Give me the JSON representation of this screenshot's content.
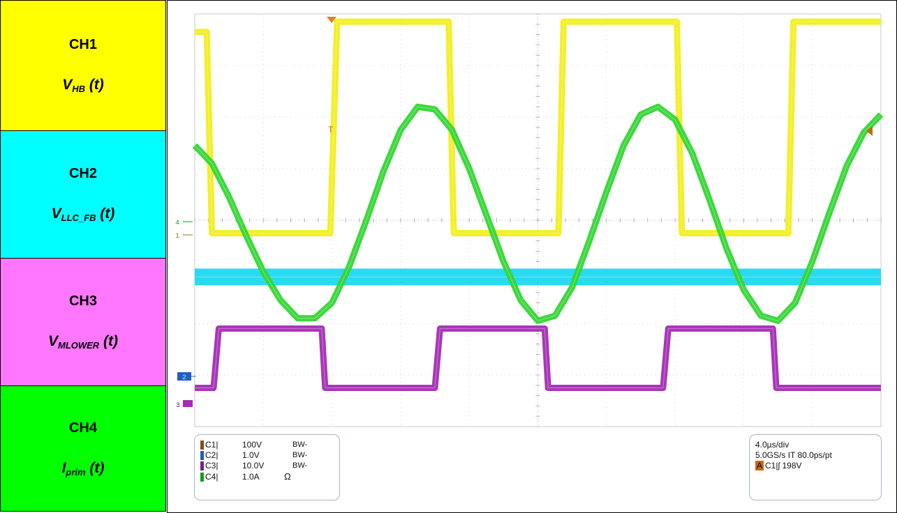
{
  "legend": [
    {
      "name": "CH1",
      "signal": "V",
      "sub": "HB",
      "suffix": " (t)",
      "color": "#ffff00"
    },
    {
      "name": "CH2",
      "signal": "V",
      "sub": "LLC_FB",
      "suffix": " (t)",
      "color": "#00ffff"
    },
    {
      "name": "CH3",
      "signal": "V",
      "sub": "MLOWER",
      "suffix": " (t)",
      "color": "#ff77ff"
    },
    {
      "name": "CH4",
      "signal": "I",
      "sub": "prim",
      "suffix": " (t)",
      "color": "#00ff00"
    }
  ],
  "scope_settings": {
    "channels": [
      {
        "label": "C1",
        "sep": "|",
        "scale": "100V",
        "bw": "BW-",
        "color": "#8b4a1a"
      },
      {
        "label": "C2",
        "sep": "|",
        "scale": "1.0V",
        "bw": "BW-",
        "color": "#1f5fbf"
      },
      {
        "label": "C3",
        "sep": "|",
        "scale": "10.0V",
        "bw": "BW-",
        "color": "#7a1f8e"
      },
      {
        "label": "C4",
        "sep": "|",
        "scale": "1.0A",
        "bw": "Ω",
        "color": "#1a9a1a"
      }
    ],
    "timebase": "4.0µs/div",
    "sample_rate": "5.0GS/s IT 80.0ps/pt",
    "trigger": {
      "badge": "A",
      "source": "C1",
      "slope": "|ʃ",
      "level": "198V"
    }
  },
  "markers": {
    "ch4": "4",
    "ch1": "1",
    "ch2": "2",
    "ch3": "3"
  },
  "chart_data": {
    "type": "line",
    "x_unit": "µs",
    "time_per_div": 4.0,
    "divisions_x": 10,
    "divisions_y": 8,
    "x_range": [
      0,
      40
    ],
    "series": [
      {
        "name": "CH1",
        "color": "#f2ee1c",
        "points": [
          [
            0,
            3.65
          ],
          [
            0.7,
            3.65
          ],
          [
            1.0,
            -0.25
          ],
          [
            7.9,
            -0.25
          ],
          [
            8.3,
            3.85
          ],
          [
            14.8,
            3.85
          ],
          [
            15.1,
            -0.25
          ],
          [
            21.2,
            -0.25
          ],
          [
            21.5,
            3.85
          ],
          [
            28.1,
            3.85
          ],
          [
            28.4,
            -0.25
          ],
          [
            34.6,
            -0.25
          ],
          [
            34.9,
            3.85
          ],
          [
            40,
            3.85
          ]
        ]
      },
      {
        "name": "CH2",
        "color": "#1fd8f0",
        "points": [
          [
            0,
            -1.1
          ],
          [
            40,
            -1.1
          ]
        ]
      },
      {
        "name": "CH3",
        "color": "#a52bb5",
        "points": [
          [
            0,
            -3.25
          ],
          [
            1.1,
            -3.25
          ],
          [
            1.4,
            -2.1
          ],
          [
            7.4,
            -2.1
          ],
          [
            7.6,
            -3.25
          ],
          [
            14.0,
            -3.25
          ],
          [
            14.3,
            -2.1
          ],
          [
            20.4,
            -2.1
          ],
          [
            20.6,
            -3.25
          ],
          [
            27.3,
            -3.25
          ],
          [
            27.6,
            -2.1
          ],
          [
            33.7,
            -2.1
          ],
          [
            33.9,
            -3.25
          ],
          [
            40,
            -3.25
          ]
        ]
      },
      {
        "name": "CH4",
        "color": "#33d633",
        "points": [
          [
            0,
            1.45
          ],
          [
            1,
            1.1
          ],
          [
            2,
            0.45
          ],
          [
            3,
            -0.3
          ],
          [
            4,
            -1.0
          ],
          [
            5,
            -1.55
          ],
          [
            6,
            -1.9
          ],
          [
            7,
            -1.9
          ],
          [
            8,
            -1.6
          ],
          [
            9,
            -0.9
          ],
          [
            10,
            0.0
          ],
          [
            11,
            0.95
          ],
          [
            12,
            1.75
          ],
          [
            13,
            2.2
          ],
          [
            14,
            2.15
          ],
          [
            15,
            1.75
          ],
          [
            16,
            1.0
          ],
          [
            17,
            0.1
          ],
          [
            18,
            -0.8
          ],
          [
            19,
            -1.55
          ],
          [
            20,
            -1.95
          ],
          [
            21,
            -1.85
          ],
          [
            22,
            -1.3
          ],
          [
            23,
            -0.4
          ],
          [
            24,
            0.55
          ],
          [
            25,
            1.45
          ],
          [
            26,
            2.05
          ],
          [
            27,
            2.2
          ],
          [
            28,
            1.95
          ],
          [
            29,
            1.3
          ],
          [
            30,
            0.4
          ],
          [
            31,
            -0.55
          ],
          [
            32,
            -1.35
          ],
          [
            33,
            -1.85
          ],
          [
            34,
            -1.95
          ],
          [
            35,
            -1.6
          ],
          [
            36,
            -0.8
          ],
          [
            37,
            0.15
          ],
          [
            38,
            1.05
          ],
          [
            39,
            1.7
          ],
          [
            40,
            2.05
          ]
        ]
      }
    ]
  }
}
